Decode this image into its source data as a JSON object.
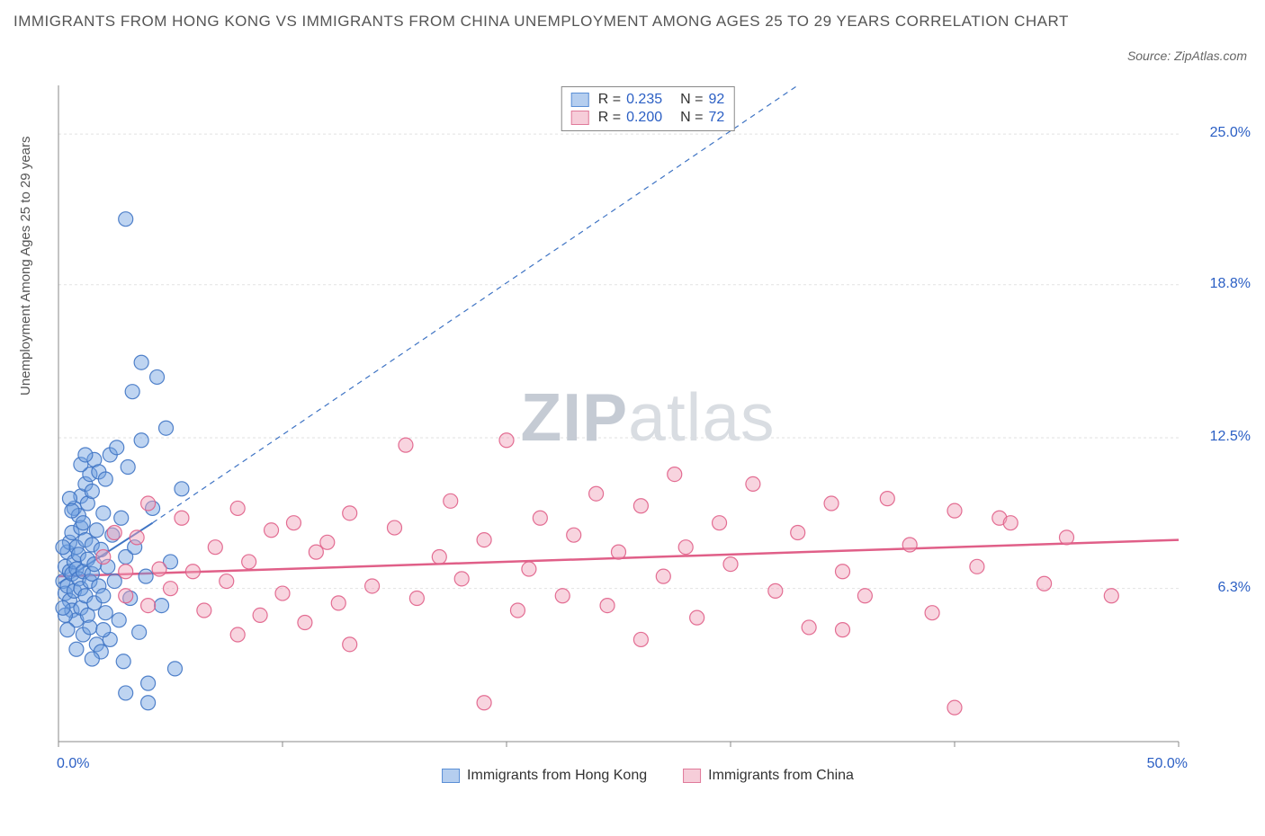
{
  "title": "IMMIGRANTS FROM HONG KONG VS IMMIGRANTS FROM CHINA UNEMPLOYMENT AMONG AGES 25 TO 29 YEARS CORRELATION CHART",
  "source": "Source: ZipAtlas.com",
  "ylabel": "Unemployment Among Ages 25 to 29 years",
  "watermark_zip": "ZIP",
  "watermark_atlas": "atlas",
  "chart": {
    "type": "scatter",
    "background_color": "#ffffff",
    "grid_color": "#e2e2e2",
    "axis_line_color": "#888888",
    "xlim": [
      0,
      50
    ],
    "ylim": [
      0,
      27
    ],
    "x_ticks": [
      0,
      10,
      20,
      30,
      40,
      50
    ],
    "x_tick_labels_shown": {
      "0": "0.0%",
      "50": "50.0%"
    },
    "y_ticks": [
      6.3,
      12.5,
      18.8,
      25.0
    ],
    "y_tick_labels": [
      "6.3%",
      "12.5%",
      "18.8%",
      "25.0%"
    ],
    "marker_radius": 8,
    "marker_opacity": 0.45,
    "marker_stroke_opacity": 0.9,
    "legend_top": [
      {
        "swatch_fill": "#b5ceef",
        "swatch_stroke": "#5b8fd6",
        "R": "0.235",
        "N": "92"
      },
      {
        "swatch_fill": "#f6cdd9",
        "swatch_stroke": "#e07a9a",
        "R": "0.200",
        "N": "72"
      }
    ],
    "legend_bottom": [
      {
        "swatch_fill": "#b5ceef",
        "swatch_stroke": "#5b8fd6",
        "label": "Immigrants from Hong Kong"
      },
      {
        "swatch_fill": "#f6cdd9",
        "swatch_stroke": "#e07a9a",
        "label": "Immigrants from China"
      }
    ],
    "series": [
      {
        "name": "Immigrants from Hong Kong",
        "color_fill": "#6fa0e0",
        "color_stroke": "#3f74c4",
        "trend": {
          "x1": 0,
          "y1": 6.5,
          "x2": 4.2,
          "y2": 9.0,
          "dash_x2": 33,
          "dash_y2": 27,
          "stroke": "#3f74c4",
          "width": 2
        },
        "points": [
          [
            0.2,
            6.6
          ],
          [
            0.3,
            7.2
          ],
          [
            0.3,
            6.1
          ],
          [
            0.4,
            7.8
          ],
          [
            0.4,
            6.4
          ],
          [
            0.5,
            8.2
          ],
          [
            0.5,
            5.8
          ],
          [
            0.5,
            7.0
          ],
          [
            0.6,
            6.9
          ],
          [
            0.6,
            8.6
          ],
          [
            0.6,
            5.4
          ],
          [
            0.7,
            7.4
          ],
          [
            0.7,
            9.6
          ],
          [
            0.7,
            6.2
          ],
          [
            0.8,
            7.1
          ],
          [
            0.8,
            8.0
          ],
          [
            0.8,
            5.0
          ],
          [
            0.9,
            9.3
          ],
          [
            0.9,
            6.7
          ],
          [
            0.9,
            7.7
          ],
          [
            1.0,
            8.8
          ],
          [
            1.0,
            10.1
          ],
          [
            1.0,
            5.5
          ],
          [
            1.0,
            6.3
          ],
          [
            1.1,
            7.0
          ],
          [
            1.1,
            9.0
          ],
          [
            1.1,
            4.4
          ],
          [
            1.2,
            8.3
          ],
          [
            1.2,
            6.0
          ],
          [
            1.2,
            10.6
          ],
          [
            1.3,
            7.5
          ],
          [
            1.3,
            5.2
          ],
          [
            1.3,
            9.8
          ],
          [
            1.4,
            6.6
          ],
          [
            1.4,
            11.0
          ],
          [
            1.4,
            4.7
          ],
          [
            1.5,
            8.1
          ],
          [
            1.5,
            6.9
          ],
          [
            1.5,
            10.3
          ],
          [
            1.6,
            7.3
          ],
          [
            1.6,
            5.7
          ],
          [
            1.6,
            11.6
          ],
          [
            1.7,
            8.7
          ],
          [
            1.7,
            4.0
          ],
          [
            1.8,
            6.4
          ],
          [
            1.8,
            11.1
          ],
          [
            1.9,
            7.9
          ],
          [
            1.9,
            3.7
          ],
          [
            2.0,
            9.4
          ],
          [
            2.0,
            6.0
          ],
          [
            2.1,
            10.8
          ],
          [
            2.1,
            5.3
          ],
          [
            2.2,
            7.2
          ],
          [
            2.3,
            11.8
          ],
          [
            2.3,
            4.2
          ],
          [
            2.4,
            8.5
          ],
          [
            2.5,
            6.6
          ],
          [
            2.6,
            12.1
          ],
          [
            2.7,
            5.0
          ],
          [
            2.8,
            9.2
          ],
          [
            2.9,
            3.3
          ],
          [
            3.0,
            7.6
          ],
          [
            3.1,
            11.3
          ],
          [
            3.2,
            5.9
          ],
          [
            3.3,
            14.4
          ],
          [
            3.4,
            8.0
          ],
          [
            3.6,
            4.5
          ],
          [
            3.7,
            12.4
          ],
          [
            3.9,
            6.8
          ],
          [
            4.0,
            2.4
          ],
          [
            4.2,
            9.6
          ],
          [
            4.4,
            15.0
          ],
          [
            4.6,
            5.6
          ],
          [
            4.8,
            12.9
          ],
          [
            5.0,
            7.4
          ],
          [
            5.2,
            3.0
          ],
          [
            5.5,
            10.4
          ],
          [
            3.7,
            15.6
          ],
          [
            3.0,
            21.5
          ],
          [
            3.0,
            2.0
          ],
          [
            4.0,
            1.6
          ],
          [
            1.0,
            11.4
          ],
          [
            1.2,
            11.8
          ],
          [
            0.5,
            10.0
          ],
          [
            0.6,
            9.5
          ],
          [
            0.3,
            5.2
          ],
          [
            0.4,
            4.6
          ],
          [
            0.2,
            8.0
          ],
          [
            0.2,
            5.5
          ],
          [
            0.8,
            3.8
          ],
          [
            1.5,
            3.4
          ],
          [
            2.0,
            4.6
          ]
        ]
      },
      {
        "name": "Immigrants from China",
        "color_fill": "#f09fb8",
        "color_stroke": "#e05f88",
        "trend": {
          "x1": 0,
          "y1": 6.8,
          "x2": 50,
          "y2": 8.3,
          "stroke": "#e05f88",
          "width": 2.5
        },
        "points": [
          [
            2.0,
            7.6
          ],
          [
            3.0,
            6.0
          ],
          [
            3.5,
            8.4
          ],
          [
            4.0,
            5.6
          ],
          [
            4.5,
            7.1
          ],
          [
            5.0,
            6.3
          ],
          [
            5.5,
            9.2
          ],
          [
            6.0,
            7.0
          ],
          [
            6.5,
            5.4
          ],
          [
            7.0,
            8.0
          ],
          [
            7.5,
            6.6
          ],
          [
            8.0,
            9.6
          ],
          [
            8.5,
            7.4
          ],
          [
            9.0,
            5.2
          ],
          [
            9.5,
            8.7
          ],
          [
            10.0,
            6.1
          ],
          [
            10.5,
            9.0
          ],
          [
            11.0,
            4.9
          ],
          [
            11.5,
            7.8
          ],
          [
            12.0,
            8.2
          ],
          [
            12.5,
            5.7
          ],
          [
            13.0,
            9.4
          ],
          [
            14.0,
            6.4
          ],
          [
            15.0,
            8.8
          ],
          [
            15.5,
            12.2
          ],
          [
            16.0,
            5.9
          ],
          [
            17.0,
            7.6
          ],
          [
            17.5,
            9.9
          ],
          [
            18.0,
            6.7
          ],
          [
            19.0,
            8.3
          ],
          [
            20.0,
            12.4
          ],
          [
            20.5,
            5.4
          ],
          [
            21.0,
            7.1
          ],
          [
            21.5,
            9.2
          ],
          [
            22.5,
            6.0
          ],
          [
            23.0,
            8.5
          ],
          [
            24.0,
            10.2
          ],
          [
            24.5,
            5.6
          ],
          [
            25.0,
            7.8
          ],
          [
            26.0,
            9.7
          ],
          [
            27.0,
            6.8
          ],
          [
            27.5,
            11.0
          ],
          [
            28.0,
            8.0
          ],
          [
            28.5,
            5.1
          ],
          [
            29.5,
            9.0
          ],
          [
            30.0,
            7.3
          ],
          [
            31.0,
            10.6
          ],
          [
            32.0,
            6.2
          ],
          [
            33.0,
            8.6
          ],
          [
            33.5,
            4.7
          ],
          [
            34.5,
            9.8
          ],
          [
            35.0,
            7.0
          ],
          [
            36.0,
            6.0
          ],
          [
            37.0,
            10.0
          ],
          [
            38.0,
            8.1
          ],
          [
            39.0,
            5.3
          ],
          [
            40.0,
            9.5
          ],
          [
            41.0,
            7.2
          ],
          [
            42.0,
            9.2
          ],
          [
            42.5,
            9.0
          ],
          [
            44.0,
            6.5
          ],
          [
            45.0,
            8.4
          ],
          [
            47.0,
            6.0
          ],
          [
            19.0,
            1.6
          ],
          [
            40.0,
            1.4
          ],
          [
            26.0,
            4.2
          ],
          [
            35.0,
            4.6
          ],
          [
            13.0,
            4.0
          ],
          [
            8.0,
            4.4
          ],
          [
            3.0,
            7.0
          ],
          [
            2.5,
            8.6
          ],
          [
            4.0,
            9.8
          ]
        ]
      }
    ]
  }
}
